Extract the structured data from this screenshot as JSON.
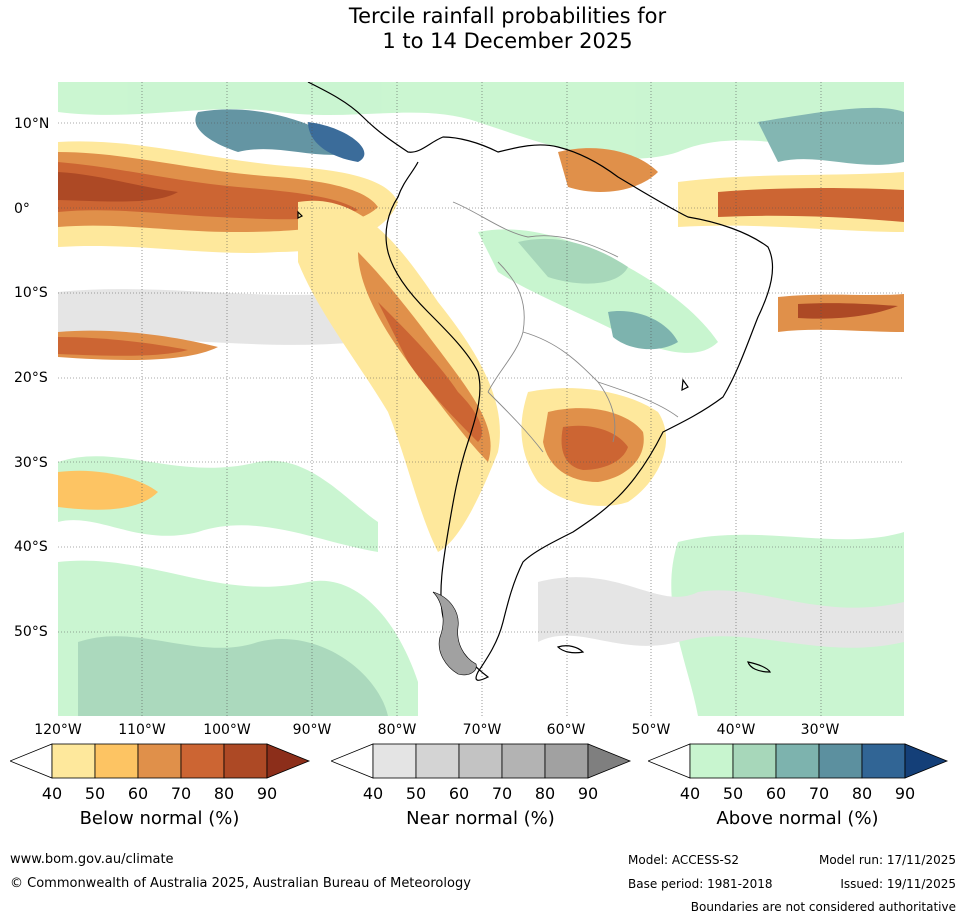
{
  "title_line1": "Tercile rainfall probabilities for",
  "title_line2": "1 to 14 December 2025",
  "map": {
    "lon_labels": [
      "120°W",
      "110°W",
      "100°W",
      "90°W",
      "80°W",
      "70°W",
      "60°W",
      "50°W",
      "40°W",
      "30°W"
    ],
    "lat_labels": [
      "10°N",
      "0°",
      "10°S",
      "20°S",
      "30°S",
      "40°S",
      "50°S"
    ]
  },
  "legends": [
    {
      "title": "Below normal (%)",
      "ticks": [
        "40",
        "50",
        "60",
        "70",
        "80",
        "90"
      ],
      "colors": [
        "#ffffff",
        "#fee89c",
        "#fdc463",
        "#e0904a",
        "#cc6533",
        "#ad4925",
        "#8c2e1a"
      ]
    },
    {
      "title": "Near normal (%)",
      "ticks": [
        "40",
        "50",
        "60",
        "70",
        "80",
        "90"
      ],
      "colors": [
        "#ffffff",
        "#e4e4e4",
        "#d4d4d4",
        "#c3c3c3",
        "#b3b3b3",
        "#a1a1a1",
        "#7f7f7f"
      ]
    },
    {
      "title": "Above normal (%)",
      "ticks": [
        "40",
        "50",
        "60",
        "70",
        "80",
        "90"
      ],
      "colors": [
        "#ffffff",
        "#c8f5cf",
        "#a7d7ba",
        "#7db3ae",
        "#5c909f",
        "#316595",
        "#143f78"
      ]
    }
  ],
  "footer": {
    "website": "www.bom.gov.au/climate",
    "copyright": "© Commonwealth of Australia 2025, Australian Bureau of Meteorology",
    "model": "Model: ACCESS-S2",
    "model_run": "Model run: 17/11/2025",
    "base_period": "Base period: 1981-2018",
    "issued": "Issued: 19/11/2025",
    "disclaimer": "Boundaries are not considered authoritative"
  }
}
